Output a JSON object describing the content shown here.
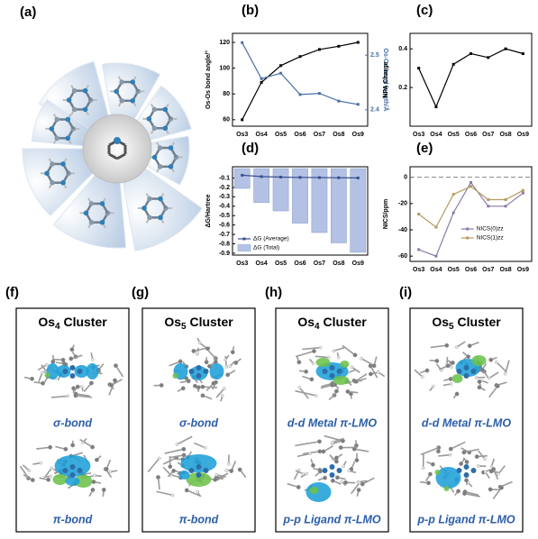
{
  "panel_labels": [
    "(a)",
    "(b)",
    "(c)",
    "(d)",
    "(e)"
  ],
  "chart_data": [
    {
      "type": "line",
      "categories": [
        "Os3",
        "Os4",
        "Os5",
        "Os6",
        "Os7",
        "Os8",
        "Os9"
      ],
      "ylabel": "Os-Os bond angle/°",
      "y2label": "Os-Os bond length/Å",
      "ylim": [
        55,
        127
      ],
      "yticks": [
        60,
        80,
        100,
        120
      ],
      "y2lim": [
        2.37,
        2.54
      ],
      "y2ticks": [
        2.4,
        2.5
      ],
      "series": [
        {
          "color": "#000000",
          "values": [
            60,
            89,
            102,
            109,
            114.5,
            117,
            120
          ]
        },
        {
          "color": "#4a6fa5",
          "axis": "y2",
          "values": [
            2.523,
            2.457,
            2.467,
            2.428,
            2.43,
            2.416,
            2.41
          ]
        }
      ]
    },
    {
      "type": "line",
      "categories": [
        "Os3",
        "Os4",
        "Os5",
        "Os6",
        "Os7",
        "Os8",
        "Os9"
      ],
      "ylabel": "NPA Charge",
      "ylim": [
        0,
        0.48
      ],
      "yticks": [
        0.2,
        0.4
      ],
      "series": [
        {
          "color": "#000000",
          "values": [
            0.3,
            0.1,
            0.32,
            0.375,
            0.355,
            0.4,
            0.375
          ]
        }
      ]
    },
    {
      "type": "bar",
      "categories": [
        "Os3",
        "Os4",
        "Os5",
        "Os6",
        "Os7",
        "Os8",
        "Os9"
      ],
      "ylabel": "ΔG/Hartree",
      "ylim": [
        -0.92,
        0.02
      ],
      "yticks": [
        -0.1,
        -0.2,
        -0.3,
        -0.4,
        -0.5,
        -0.6,
        -0.7,
        -0.8,
        -0.9
      ],
      "legend": "lower left",
      "series": [
        {
          "name": "ΔG (Average)",
          "type": "line",
          "color": "#3a4f8f",
          "values": [
            -0.07,
            -0.085,
            -0.09,
            -0.093,
            -0.095,
            -0.097,
            -0.099
          ]
        },
        {
          "name": "ΔG (Total)",
          "color": "#b3c2e4",
          "values": [
            -0.21,
            -0.36,
            -0.45,
            -0.58,
            -0.68,
            -0.79,
            -0.89
          ]
        }
      ]
    },
    {
      "type": "line",
      "categories": [
        "Os3",
        "Os4",
        "Os5",
        "Os6",
        "Os7",
        "Os8",
        "Os9"
      ],
      "ylabel": "NICS/ppm",
      "ylim": [
        -64,
        8
      ],
      "yticks": [
        0,
        -20,
        -40,
        -60
      ],
      "hline": 0,
      "legend": "lower right",
      "series": [
        {
          "name": "NICS(0)zz",
          "color": "#8c7aa8",
          "values": [
            -55,
            -60,
            -27,
            -4,
            -22,
            -22,
            -12
          ]
        },
        {
          "name": "NICS(1)zz",
          "color": "#b89a5e",
          "values": [
            -28,
            -38,
            -13,
            -7,
            -17,
            -17,
            -10
          ]
        }
      ]
    }
  ],
  "clusters": [
    {
      "label": "(f)",
      "element": "Os",
      "subscript": "4",
      "suffix": " Cluster",
      "orbitals": [
        "σ-bond",
        "π-bond"
      ]
    },
    {
      "label": "(g)",
      "element": "Os",
      "subscript": "5",
      "suffix": " Cluster",
      "orbitals": [
        "σ-bond",
        "π-bond"
      ]
    },
    {
      "label": "(h)",
      "element": "Os",
      "subscript": "4",
      "suffix": " Cluster",
      "orbitals": [
        "d-d Metal π-LMO",
        "p-p Ligand π-LMO"
      ]
    },
    {
      "label": "(i)",
      "element": "Os",
      "subscript": "5",
      "suffix": " Cluster",
      "orbitals": [
        "d-d Metal π-LMO",
        "p-p Ligand π-LMO"
      ]
    }
  ]
}
